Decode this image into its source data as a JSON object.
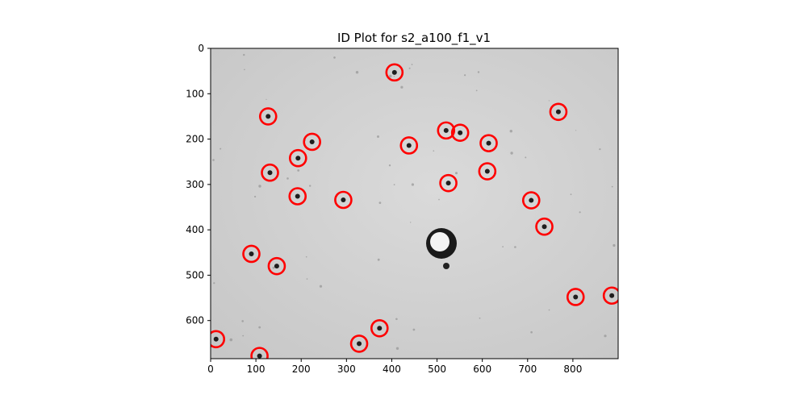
{
  "chart_data": {
    "type": "scatter",
    "title": "ID Plot for s2_a100_f1_v1",
    "xlabel": "",
    "ylabel": "",
    "xlim": [
      0,
      900
    ],
    "ylim": [
      684,
      0
    ],
    "x_ticks": [
      0,
      100,
      200,
      300,
      400,
      500,
      600,
      700,
      800
    ],
    "y_ticks": [
      0,
      100,
      200,
      300,
      400,
      500,
      600
    ],
    "grid": false,
    "background": "grayscale microscope image",
    "marker": "circle outline",
    "marker_color": "#ff0000",
    "points": [
      {
        "x": 406,
        "y": 53
      },
      {
        "x": 127,
        "y": 150
      },
      {
        "x": 768,
        "y": 140
      },
      {
        "x": 520,
        "y": 181
      },
      {
        "x": 551,
        "y": 186
      },
      {
        "x": 224,
        "y": 206
      },
      {
        "x": 438,
        "y": 214
      },
      {
        "x": 614,
        "y": 209
      },
      {
        "x": 193,
        "y": 242
      },
      {
        "x": 131,
        "y": 274
      },
      {
        "x": 611,
        "y": 271
      },
      {
        "x": 525,
        "y": 297
      },
      {
        "x": 192,
        "y": 326
      },
      {
        "x": 293,
        "y": 334
      },
      {
        "x": 708,
        "y": 335
      },
      {
        "x": 737,
        "y": 393
      },
      {
        "x": 90,
        "y": 453
      },
      {
        "x": 146,
        "y": 480
      },
      {
        "x": 806,
        "y": 548
      },
      {
        "x": 886,
        "y": 545
      },
      {
        "x": 373,
        "y": 617
      },
      {
        "x": 328,
        "y": 651
      },
      {
        "x": 12,
        "y": 641
      },
      {
        "x": 108,
        "y": 678
      }
    ]
  }
}
